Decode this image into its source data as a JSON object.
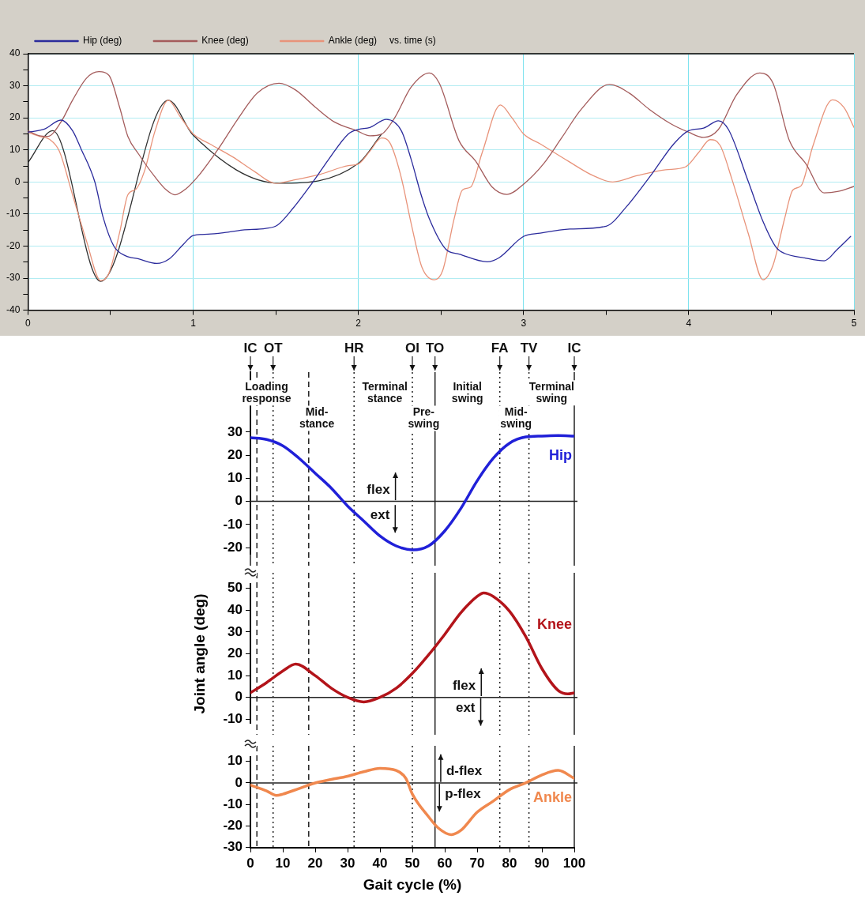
{
  "chart_data": [
    {
      "type": "line",
      "legend": "top left",
      "grid": true,
      "xlim": [
        0,
        5
      ],
      "xticks": [
        0,
        {
          "value": 0.5,
          "label": null
        },
        1,
        {
          "value": 1.5,
          "label": null
        },
        2,
        {
          "value": 2.5,
          "label": null
        },
        3,
        {
          "value": 3.5,
          "label": null
        },
        4,
        {
          "value": 4.5,
          "label": null
        },
        5
      ],
      "ylim": [
        -40,
        40
      ],
      "yticks": [
        -40,
        {
          "value": -35,
          "label": null
        },
        -30,
        {
          "value": -25,
          "label": null
        },
        -20,
        {
          "value": -15,
          "label": null
        },
        -10,
        {
          "value": -5,
          "label": null
        },
        0,
        {
          "value": 5,
          "label": null
        },
        10,
        {
          "value": 15,
          "label": null
        },
        20,
        {
          "value": 25,
          "label": null
        },
        30,
        {
          "value": 35,
          "label": null
        },
        40
      ],
      "annotations": [
        "vs. time (s)"
      ],
      "series": [
        {
          "name": "Hip (deg)",
          "color": "#2b2b9c",
          "x": [
            0,
            0.1,
            0.2,
            0.27,
            0.32,
            0.405,
            0.455,
            0.52,
            0.59,
            0.67,
            0.78,
            0.855,
            0.94,
            1.0,
            1.09,
            1.19,
            1.3,
            1.44,
            1.51,
            1.6,
            1.72,
            1.82,
            1.94,
            2.0,
            2.07,
            2.17,
            2.26,
            2.32,
            2.38,
            2.43,
            2.53,
            2.61,
            2.78,
            2.85,
            3.0,
            3.1,
            3.28,
            3.5,
            3.62,
            3.77,
            3.91,
            4.0,
            4.09,
            4.18,
            4.24,
            4.36,
            4.45,
            4.53,
            4.58,
            4.7,
            4.82,
            4.9,
            4.98
          ],
          "values": [
            15.5,
            16.5,
            19.3,
            16,
            10.5,
            0,
            -11,
            -20,
            -23,
            -24,
            -25.4,
            -24,
            -19.5,
            -16.7,
            -16.3,
            -15.8,
            -15,
            -14.5,
            -13.5,
            -8.5,
            -0.4,
            7,
            15,
            16.4,
            17,
            19.5,
            16,
            7,
            -4,
            -11.5,
            -21,
            -22.5,
            -24.9,
            -23.7,
            -17,
            -16,
            -14.7,
            -13.8,
            -7.9,
            2,
            11.9,
            16,
            16.8,
            19.1,
            16.4,
            0.2,
            -12.4,
            -20.5,
            -22.3,
            -23.7,
            -24.6,
            -21,
            -17
          ]
        },
        {
          "name": "Knee (deg)",
          "color": "#a45c5c",
          "x": [
            0,
            0.07,
            0.12,
            0.2,
            0.27,
            0.355,
            0.43,
            0.49,
            0.555,
            0.605,
            0.67,
            0.77,
            0.84,
            0.89,
            0.955,
            1.04,
            1.155,
            1.27,
            1.39,
            1.52,
            1.62,
            1.74,
            1.855,
            1.99,
            2.07,
            2.14,
            2.22,
            2.32,
            2.43,
            2.49,
            2.61,
            2.71,
            2.81,
            2.9,
            3.0,
            3.12,
            3.23,
            3.35,
            3.52,
            3.64,
            3.76,
            3.89,
            4.0,
            4.09,
            4.18,
            4.29,
            4.43,
            4.51,
            4.61,
            4.71,
            4.82,
            4.9,
            5.0
          ],
          "values": [
            16,
            14.4,
            14.2,
            18.7,
            25.5,
            32.4,
            34.4,
            33.3,
            23.3,
            14.2,
            8.7,
            1.5,
            -2.6,
            -4,
            -2.2,
            2.4,
            10.5,
            19.6,
            27.8,
            30.8,
            28.7,
            23.3,
            18.7,
            16,
            14.4,
            14.9,
            20,
            29.6,
            34,
            30.8,
            12.8,
            6.5,
            -1.6,
            -3.9,
            -0.7,
            5.6,
            13.7,
            22.7,
            30.4,
            27.7,
            22.7,
            18.2,
            15.5,
            13.9,
            16.4,
            27.2,
            34,
            30.8,
            12.8,
            5.6,
            -3.4,
            -3,
            -1.4
          ]
        },
        {
          "name": "Ankle (deg)",
          "color": "#e8937a",
          "x": [
            0,
            0.07,
            0.13,
            0.19,
            0.27,
            0.355,
            0.44,
            0.49,
            0.555,
            0.605,
            0.655,
            0.705,
            0.77,
            0.85,
            0.92,
            1.0,
            1.1,
            1.24,
            1.37,
            1.5,
            1.6,
            1.77,
            1.94,
            2.0,
            2.07,
            2.14,
            2.19,
            2.255,
            2.32,
            2.385,
            2.46,
            2.51,
            2.58,
            2.63,
            2.68,
            2.75,
            2.86,
            2.93,
            3.0,
            3.1,
            3.27,
            3.42,
            3.54,
            3.69,
            3.86,
            3.98,
            4.06,
            4.13,
            4.19,
            4.26,
            4.36,
            4.45,
            4.51,
            4.58,
            4.63,
            4.68,
            4.75,
            4.87,
            4.94,
            5.0
          ],
          "values": [
            15.5,
            14.2,
            13.3,
            9.6,
            -4,
            -18.5,
            -30.8,
            -28.5,
            -15.8,
            -4,
            -2.2,
            3.3,
            16,
            25.5,
            20.5,
            15,
            11.9,
            7.8,
            3.3,
            -0.4,
            0.5,
            2.4,
            5.1,
            5.6,
            9.6,
            13.7,
            12.3,
            2.4,
            -13,
            -26.6,
            -30.5,
            -27.7,
            -11.5,
            -2.5,
            -1.6,
            9.2,
            24,
            20,
            15,
            11.9,
            6.5,
            2,
            0,
            2,
            3.8,
            4.7,
            9.2,
            13.2,
            11.4,
            1.1,
            -16,
            -30.5,
            -26,
            -11.5,
            -2.5,
            -1.2,
            11,
            25.6,
            23.2,
            17
          ]
        },
        {
          "color": "#303030",
          "x": [
            0,
            0.15,
            0.44,
            0.85,
            1.0,
            1.52,
            2.0,
            2.14
          ],
          "values": [
            6,
            16,
            -31,
            25.5,
            14.6,
            -0.4,
            5.8,
            14.9
          ]
        }
      ]
    },
    {
      "type": "line",
      "tick_labels": "y",
      "xlim": [
        0,
        100
      ],
      "ylim": [
        -23,
        56
      ],
      "yticks": [
        -20,
        -10,
        0,
        10,
        20,
        30
      ],
      "ref_lines": [
        {
          "axis": "y",
          "value": 0
        },
        {
          "axis": "x",
          "value": 0,
          "label": "IC"
        },
        {
          "axis": "x",
          "value": 2,
          "line_style": "dashed"
        },
        {
          "axis": "x",
          "value": 7,
          "label": "OT",
          "line_style": "dotted"
        },
        {
          "axis": "x",
          "value": 18,
          "line_style": "dashed"
        },
        {
          "axis": "x",
          "value": 32,
          "label": "HR",
          "line_style": "dotted"
        },
        {
          "axis": "x",
          "value": 50,
          "label": "OI",
          "line_style": "dotted"
        },
        {
          "axis": "x",
          "value": 57,
          "label": "TO"
        },
        {
          "axis": "x",
          "value": 77,
          "label": "FA",
          "line_style": "dotted"
        },
        {
          "axis": "x",
          "value": 86,
          "label": "TV",
          "line_style": "dotted"
        },
        {
          "axis": "x",
          "value": 100,
          "label": "IC"
        }
      ],
      "annotations": [
        "flex",
        "ext",
        "Loading response",
        "Mid-stance",
        "Terminal stance",
        "Pre-swing",
        "Initial swing",
        "Mid-swing",
        "Terminal swing"
      ],
      "series": [
        {
          "name": "Hip",
          "color": "#2020d8",
          "x": [
            0,
            5,
            10,
            15,
            20,
            25,
            30,
            35,
            40,
            45,
            50,
            55,
            60,
            65,
            70,
            75,
            80,
            85,
            90,
            95,
            100
          ],
          "values": [
            27.6,
            26.8,
            24.1,
            18.7,
            12.2,
            5.7,
            -2,
            -8.5,
            -15,
            -19.3,
            -21,
            -19.3,
            -12.8,
            -3,
            8.9,
            18.7,
            25.2,
            27.9,
            28.3,
            28.5,
            28.3
          ]
        }
      ]
    },
    {
      "type": "line",
      "tick_labels": "y",
      "ylabel": "Joint angle (deg)",
      "xlim": [
        0,
        100
      ],
      "ylim": [
        -12,
        52
      ],
      "yticks": [
        -10,
        0,
        10,
        20,
        30,
        40,
        50
      ],
      "ref_lines": [
        {
          "axis": "y",
          "value": 0
        },
        {
          "axis": "x",
          "value": 2,
          "line_style": "dashed"
        },
        {
          "axis": "x",
          "value": 7,
          "line_style": "dotted"
        },
        {
          "axis": "x",
          "value": 18,
          "line_style": "dashed"
        },
        {
          "axis": "x",
          "value": 32,
          "line_style": "dotted"
        },
        {
          "axis": "x",
          "value": 50,
          "line_style": "dotted"
        },
        {
          "axis": "x",
          "value": 57
        },
        {
          "axis": "x",
          "value": 77,
          "line_style": "dotted"
        },
        {
          "axis": "x",
          "value": 86,
          "line_style": "dotted"
        },
        {
          "axis": "x",
          "value": 100
        }
      ],
      "annotations": [
        "flex",
        "ext"
      ],
      "series": [
        {
          "name": "Knee",
          "color": "#b3141a",
          "x": [
            0,
            5,
            10,
            14,
            20,
            25,
            30,
            35,
            40,
            45,
            50,
            55,
            60,
            65,
            70,
            72,
            75,
            80,
            85,
            90,
            95,
            98,
            100
          ],
          "values": [
            2.1,
            6.8,
            12.1,
            15.3,
            10,
            4.2,
            0,
            -2.1,
            0,
            4.2,
            11,
            19.5,
            28.9,
            38.9,
            46.3,
            47.9,
            46.3,
            39.5,
            27.9,
            13.2,
            3.2,
            1.6,
            2.1
          ]
        }
      ]
    },
    {
      "type": "line",
      "xlabel": "Gait cycle (%)",
      "xlim": [
        0,
        100
      ],
      "xticks": [
        0,
        10,
        20,
        30,
        40,
        50,
        60,
        70,
        80,
        90,
        100
      ],
      "ylim": [
        -30,
        12
      ],
      "yticks": [
        -30,
        -20,
        -10,
        0,
        10
      ],
      "ref_lines": [
        {
          "axis": "y",
          "value": 0
        },
        {
          "axis": "x",
          "value": 2,
          "line_style": "dashed"
        },
        {
          "axis": "x",
          "value": 7,
          "line_style": "dotted"
        },
        {
          "axis": "x",
          "value": 18,
          "line_style": "dashed"
        },
        {
          "axis": "x",
          "value": 32,
          "line_style": "dotted"
        },
        {
          "axis": "x",
          "value": 50,
          "line_style": "dotted"
        },
        {
          "axis": "x",
          "value": 57
        },
        {
          "axis": "x",
          "value": 77,
          "line_style": "dotted"
        },
        {
          "axis": "x",
          "value": 86,
          "line_style": "dotted"
        },
        {
          "axis": "x",
          "value": 100
        }
      ],
      "annotations": [
        "d-flex",
        "p-flex"
      ],
      "series": [
        {
          "name": "Ankle",
          "color": "#f0884e",
          "x": [
            0,
            5,
            8,
            10,
            15,
            20,
            25,
            30,
            35,
            40,
            45,
            48,
            50,
            55,
            58,
            62,
            65,
            70,
            75,
            80,
            85,
            90,
            95,
            100
          ],
          "values": [
            -1,
            -3.7,
            -5.8,
            -5.2,
            -2.6,
            0,
            1.6,
            3.1,
            5.2,
            6.8,
            5.8,
            2.1,
            -5.2,
            -15.7,
            -20.9,
            -24,
            -22,
            -13.6,
            -8.4,
            -3.1,
            0,
            3.7,
            5.8,
            2.1
          ]
        }
      ]
    }
  ]
}
